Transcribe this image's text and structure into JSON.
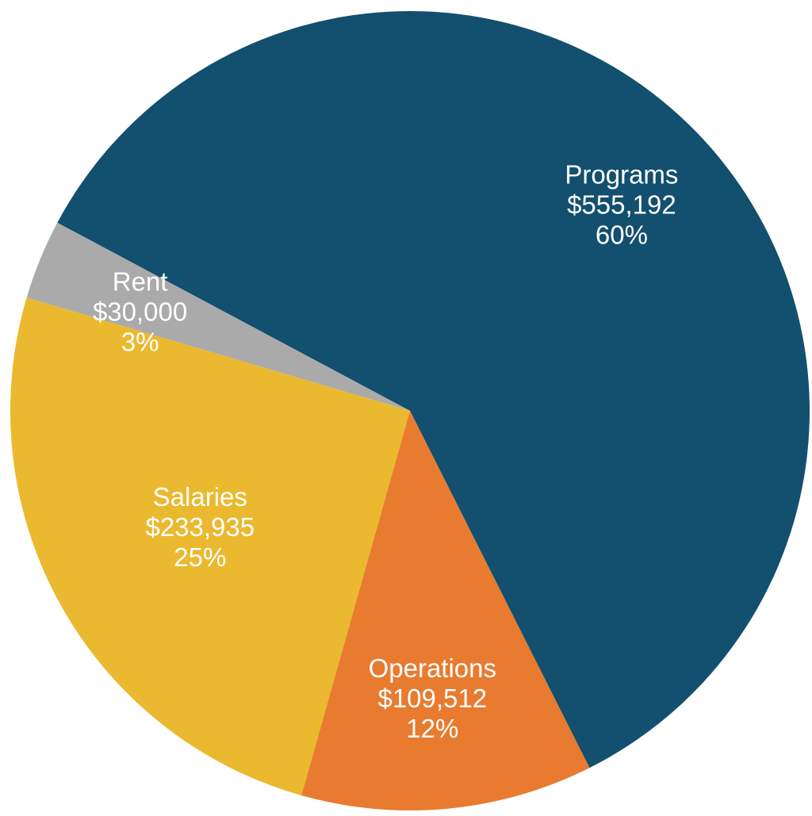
{
  "chart_data": {
    "type": "pie",
    "title": "",
    "slices": [
      {
        "name": "Programs",
        "amount": "$555,192",
        "percent": "60%",
        "value": 555192,
        "color": "#134F6E"
      },
      {
        "name": "Rent",
        "amount": "$30,000",
        "percent": "3%",
        "value": 30000,
        "color": "#AAAAAA"
      },
      {
        "name": "Salaries",
        "amount": "$233,935",
        "percent": "25%",
        "value": 233935,
        "color": "#EBB92F"
      },
      {
        "name": "Operations",
        "amount": "$109,512",
        "percent": "12%",
        "value": 109512,
        "color": "#E87B2F"
      }
    ]
  }
}
